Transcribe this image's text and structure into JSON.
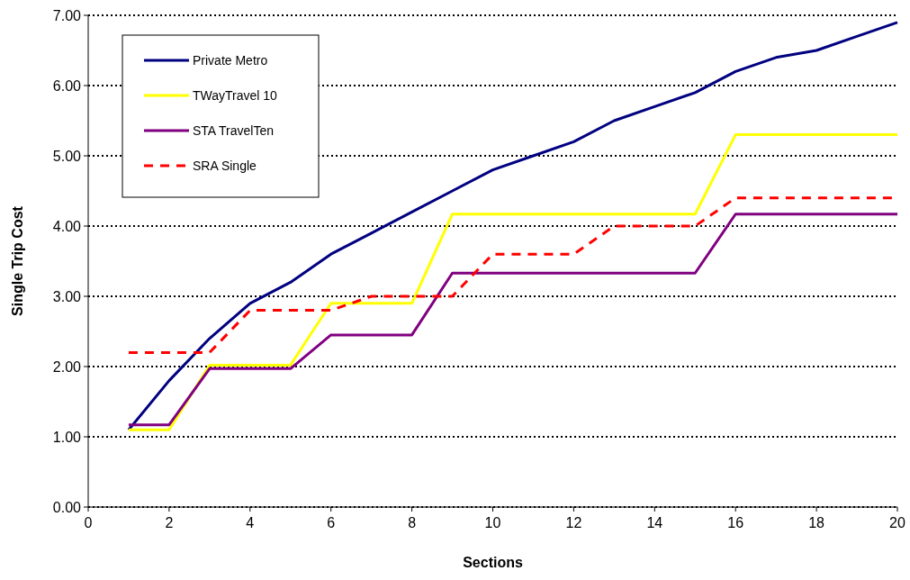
{
  "chart_data": {
    "type": "line",
    "xlabel": "Sections",
    "ylabel": "Single Trip Cost",
    "x": [
      1,
      2,
      3,
      4,
      5,
      6,
      7,
      8,
      9,
      10,
      11,
      12,
      13,
      14,
      15,
      16,
      17,
      18,
      19,
      20
    ],
    "series": [
      {
        "name": "Private Metro",
        "color": "#000080",
        "values": [
          1.1,
          1.8,
          2.4,
          2.9,
          3.2,
          3.6,
          3.9,
          4.2,
          4.5,
          4.8,
          5.0,
          5.2,
          5.5,
          5.7,
          5.9,
          6.2,
          6.4,
          6.5,
          6.7,
          6.9
        ]
      },
      {
        "name": "TWayTravel 10",
        "color": "#ffff00",
        "values": [
          1.1,
          1.1,
          2.02,
          2.02,
          2.02,
          2.9,
          2.9,
          2.9,
          4.17,
          4.17,
          4.17,
          4.17,
          4.17,
          4.17,
          4.17,
          5.3,
          5.3,
          5.3,
          5.3,
          5.3
        ]
      },
      {
        "name": "STA TravelTen",
        "color": "#800080",
        "values": [
          1.17,
          1.17,
          1.97,
          1.97,
          1.97,
          2.45,
          2.45,
          2.45,
          3.33,
          3.33,
          3.33,
          3.33,
          3.33,
          3.33,
          3.33,
          4.17,
          4.17,
          4.17,
          4.17,
          4.17
        ]
      },
      {
        "name": "SRA Single",
        "color": "#ff0000",
        "line_style": "dashed",
        "values": [
          2.2,
          2.2,
          2.2,
          2.8,
          2.8,
          2.8,
          3.0,
          3.0,
          3.0,
          3.6,
          3.6,
          3.6,
          4.0,
          4.0,
          4.0,
          4.4,
          4.4,
          4.4,
          4.4,
          4.4
        ]
      }
    ],
    "xlim": [
      0,
      20
    ],
    "xticks": [
      0,
      2,
      4,
      6,
      8,
      10,
      12,
      14,
      16,
      18,
      20
    ],
    "ylim": [
      0,
      7
    ],
    "yticks": [
      {
        "value": 0,
        "label": "0.00"
      },
      {
        "value": 1,
        "label": "1.00"
      },
      {
        "value": 2,
        "label": "2.00"
      },
      {
        "value": 3,
        "label": "3.00"
      },
      {
        "value": 4,
        "label": "4.00"
      },
      {
        "value": 5,
        "label": "5.00"
      },
      {
        "value": 6,
        "label": "6.00"
      },
      {
        "value": 7,
        "label": "7.00"
      }
    ],
    "grid": "y",
    "legend": "top left",
    "marker": "none",
    "line_style": "solid"
  }
}
